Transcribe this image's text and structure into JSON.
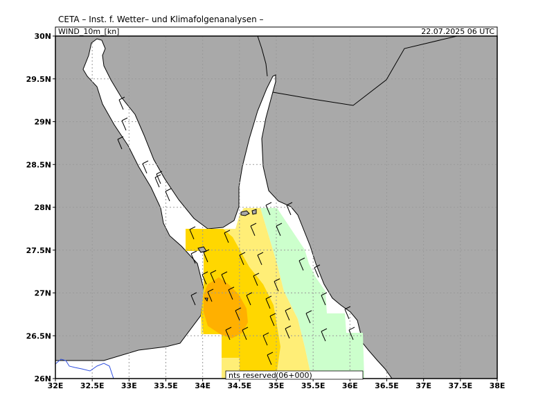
{
  "header": {
    "institute": "CETA – Inst. f. Wetter– und Klimafolgenanalysen –",
    "product": "WIND_10m_[kn]",
    "valid_time": "22.07.2025 06 UTC"
  },
  "footer": {
    "copyright": "nts reserved",
    "run": "(06+000)"
  },
  "map": {
    "lon_range": [
      32,
      38
    ],
    "lat_range": [
      26,
      30
    ],
    "x_ticks": [
      "32E",
      "32.5E",
      "33E",
      "33.5E",
      "34E",
      "34.5E",
      "35E",
      "35.5E",
      "36E",
      "36.5E",
      "37E",
      "37.5E",
      "38E"
    ],
    "y_ticks": [
      "26N",
      "26.5N",
      "27N",
      "27.5N",
      "28N",
      "28.5N",
      "29N",
      "29.5N",
      "30N"
    ],
    "land_color": "#a9a9a9",
    "sea_color": "#ffffff",
    "river_color": "#3050e0",
    "wind_colors": {
      "green": "#ccffcc",
      "light_yellow": "#ffee77",
      "yellow": "#ffd700",
      "orange": "#ffb000"
    }
  }
}
